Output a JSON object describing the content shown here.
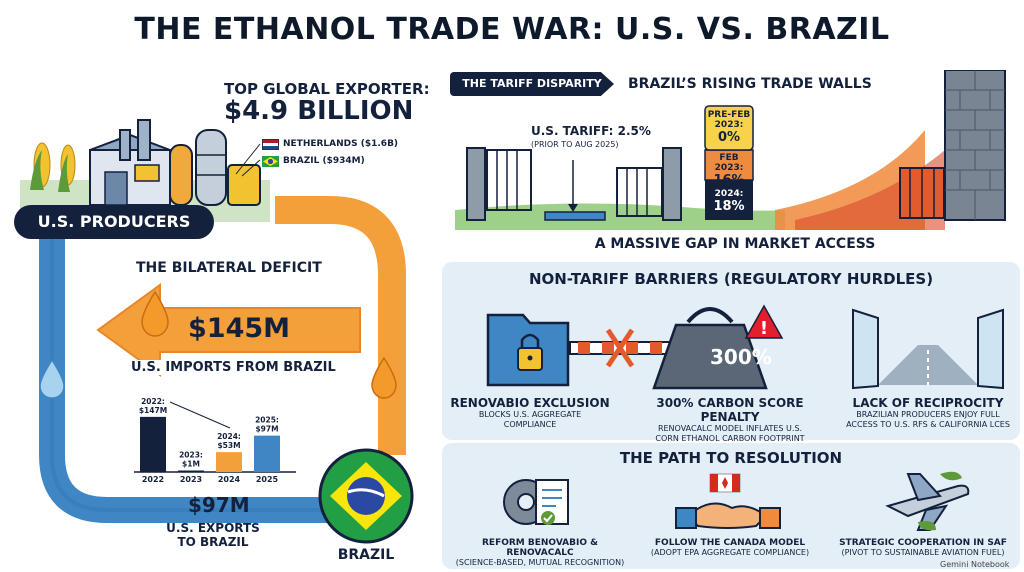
{
  "title": "THE ETHANOL TRADE WAR: U.S. VS. BRAZIL",
  "left": {
    "exporter_heading": "TOP GLOBAL EXPORTER:",
    "exporter_value": "$4.9 BILLION",
    "legend": [
      {
        "label": "NETHERLANDS ($1.6B)",
        "flag": "netherlands-flag"
      },
      {
        "label": "BRAZIL ($934M)",
        "flag": "brazil-flag"
      }
    ],
    "producers_label": "U.S. PRODUCERS",
    "deficit_title": "THE BILATERAL DEFICIT",
    "imports_value": "$145M",
    "imports_label": "U.S. IMPORTS FROM BRAZIL",
    "exports_value": "$97M",
    "exports_label_1": "U.S. EXPORTS",
    "exports_label_2": "TO BRAZIL",
    "brazil_label": "BRAZIL",
    "colors": {
      "navy": "#14213d",
      "orange": "#f4a03a",
      "blue": "#3f86c4"
    }
  },
  "chart_data": {
    "type": "bar",
    "categories": [
      "2022",
      "2023",
      "2024",
      "2025"
    ],
    "values": [
      147,
      1,
      53,
      97
    ],
    "value_labels": [
      "2022:\n$147M",
      "2023:\n$1M",
      "2024:\n$53M",
      "2025:\n$97M"
    ],
    "colors": [
      "#14213d",
      "#14213d",
      "#f4a03a",
      "#3f86c4"
    ],
    "ylim": [
      0,
      160
    ],
    "grid": false
  },
  "tariff": {
    "badge": "THE TARIFF DISPARITY",
    "heading": "BRAZIL’S RISING TRADE WALLS",
    "us_tariff": "U.S. TARIFF: 2.5%",
    "us_tariff_note": "(PRIOR TO AUG 2025)",
    "stack": [
      {
        "label": "2024:",
        "value": "18%"
      },
      {
        "label": "FEB 2023:",
        "value": "16%"
      },
      {
        "label": "PRE-FEB 2023:",
        "value": "0%"
      }
    ],
    "gap_caption": "A MASSIVE GAP IN MARKET ACCESS"
  },
  "nontariff": {
    "heading": "NON-TARIFF BARRIERS (REGULATORY HURDLES)",
    "weight_label": "300%",
    "items": [
      {
        "title": "RENOVABIO EXCLUSION",
        "sub": "BLOCKS U.S. AGGREGATE\nCOMPLIANCE"
      },
      {
        "title": "300% CARBON SCORE PENALTY",
        "sub": "RENOVACALC MODEL INFLATES U.S.\nCORN ETHANOL CARBON FOOTPRINT"
      },
      {
        "title": "LACK OF RECIPROCITY",
        "sub": "BRAZILIAN PRODUCERS ENJOY FULL\nACCESS TO U.S. RFS & CALIFORNIA LCES"
      }
    ]
  },
  "resolution": {
    "heading": "THE PATH TO RESOLUTION",
    "items": [
      {
        "title": "REFORM BENOVABIO & RENOVACALC",
        "sub": "(SCIENCE-BASED, MUTUAL RECOGNITION)"
      },
      {
        "title": "FOLLOW THE CANADA MODEL",
        "sub": "(ADOPT EPA AGGREGATE COMPLIANCE)"
      },
      {
        "title": "STRATEGIC COOPERATION IN SAF",
        "sub": "(PIVOT TO SUSTAINABLE AVIATION FUEL)"
      }
    ]
  },
  "watermark": "Gemini Notebook"
}
